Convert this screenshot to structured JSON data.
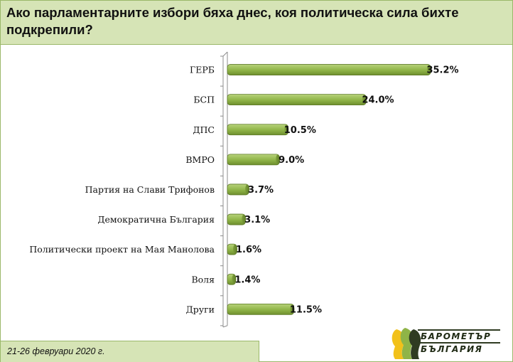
{
  "title": "Ако парламентарните избори бяха днес, коя политическа сила бихте подкрепили?",
  "footer": {
    "date": "21-26 февруари  2020 г."
  },
  "logo": {
    "line1": "БАРОМЕТЪР",
    "line2": "БЪЛГАРИЯ"
  },
  "colors": {
    "bar": "#8fb447",
    "bar_dark": "#6e8f2e",
    "header_bg": "#d6e4b6",
    "border": "#9bb86a"
  },
  "chart_data": {
    "type": "bar",
    "orientation": "horizontal",
    "categories": [
      "ГЕРБ",
      "БСП",
      "ДПС",
      "ВМРО",
      "Партия на Слави Трифонов",
      "Демократична България",
      "Политически проект на Мая Манолова",
      "Воля",
      "Други"
    ],
    "values": [
      35.2,
      24.0,
      10.5,
      9.0,
      3.7,
      3.1,
      1.6,
      1.4,
      11.5
    ],
    "value_labels": [
      "35.2%",
      "24.0%",
      "10.5%",
      "9.0%",
      "3.7%",
      "3.1%",
      "1.6%",
      "1.4%",
      "11.5%"
    ],
    "unit": "%",
    "grid": false,
    "legend": "none"
  }
}
